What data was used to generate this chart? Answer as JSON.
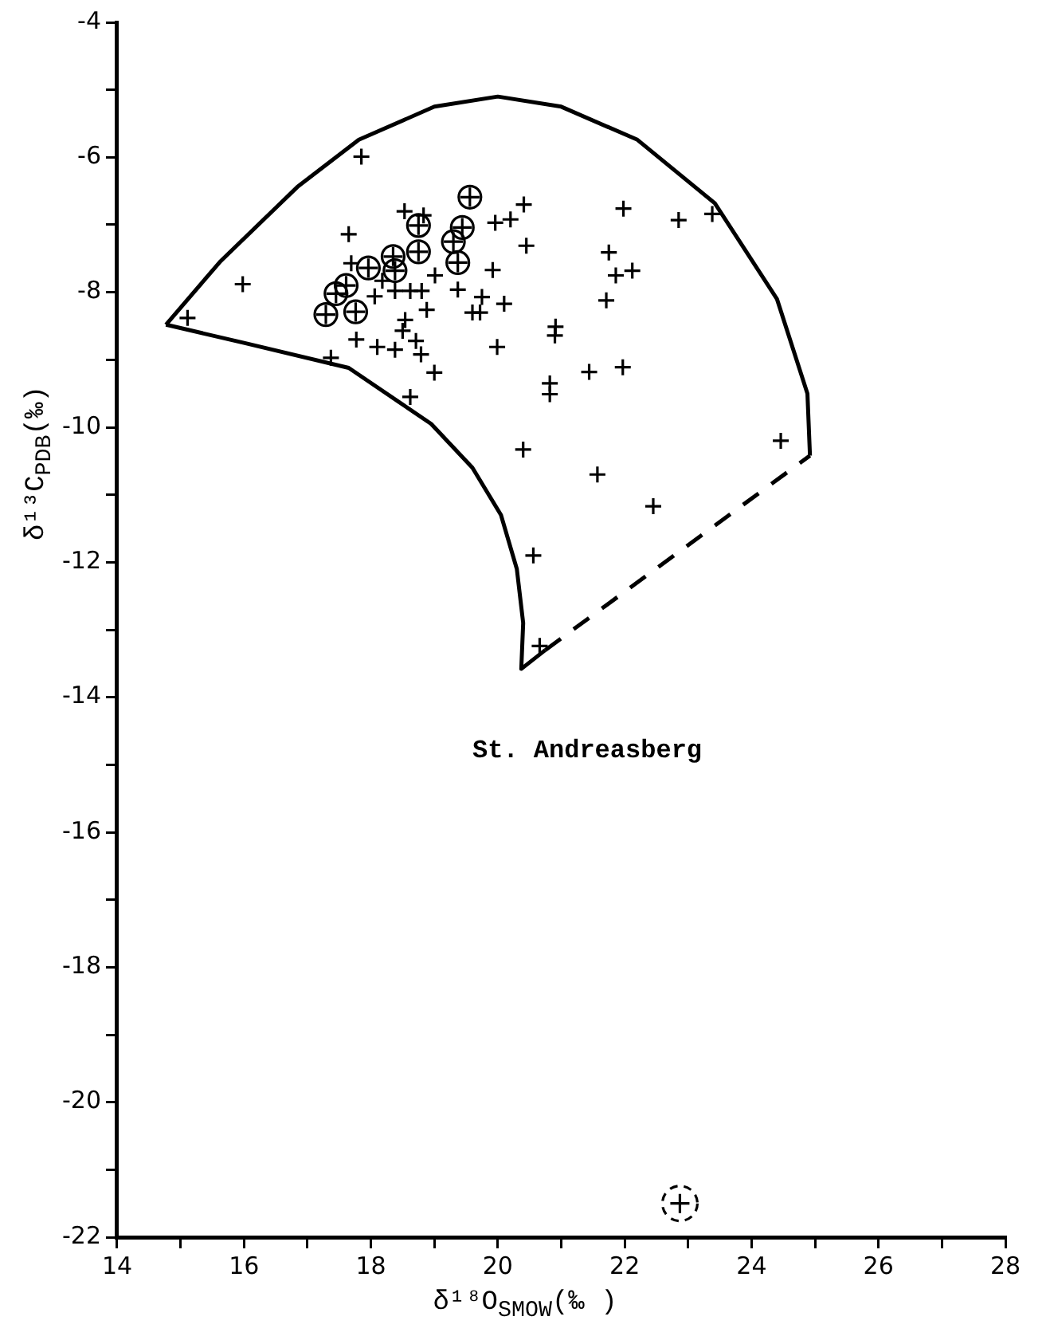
{
  "chart_data": {
    "type": "scatter",
    "xlabel": "δ¹⁸O$_{SMOW}$(‰ )",
    "ylabel": "δ¹³C$_{PDB}$(‰)",
    "xlim": [
      14,
      28
    ],
    "ylim": [
      -22,
      -4
    ],
    "xticks": [
      14,
      {
        "value": 15,
        "label": null
      },
      16,
      {
        "value": 17,
        "label": null
      },
      18,
      {
        "value": 19,
        "label": null
      },
      20,
      {
        "value": 21,
        "label": null
      },
      22,
      {
        "value": 23,
        "label": null
      },
      24,
      {
        "value": 25,
        "label": null
      },
      26,
      {
        "value": 27,
        "label": null
      },
      28
    ],
    "yticks": [
      -22,
      {
        "value": -21,
        "label": null
      },
      -20,
      {
        "value": -19,
        "label": null
      },
      -18,
      {
        "value": -17,
        "label": null
      },
      -16,
      {
        "value": -15,
        "label": null
      },
      -14,
      {
        "value": -13,
        "label": null
      },
      -12,
      {
        "value": -11,
        "label": null
      },
      -10,
      {
        "value": -9,
        "label": null
      },
      -8,
      {
        "value": -7,
        "label": null
      },
      -6,
      {
        "value": -5,
        "label": null
      },
      -4
    ],
    "annotations": [
      "St. Andreasberg"
    ],
    "series": [
      {
        "type": "line",
        "color": "#000000",
        "x": [
          14.77,
          15.62,
          16.84,
          17.81,
          19,
          20,
          21,
          22.2,
          23.42,
          24.4,
          24.88,
          24.92
        ],
        "values": [
          -8.48,
          -7.55,
          -6.44,
          -5.74,
          -5.25,
          -5.1,
          -5.25,
          -5.74,
          -6.68,
          -8.1,
          -9.5,
          -10.42
        ]
      },
      {
        "type": "line",
        "color": "#000000",
        "x": [
          14.77,
          16,
          17.65,
          18.95,
          19.6,
          20.05,
          20.3,
          20.4,
          20.37,
          20.75
        ],
        "values": [
          -8.48,
          -8.75,
          -9.12,
          -9.95,
          -10.6,
          -11.3,
          -12.1,
          -12.9,
          -13.58,
          -13.3
        ]
      },
      {
        "type": "line",
        "line_style": "dashed",
        "color": "#000000",
        "x": [
          20.75,
          24.92
        ],
        "values": [
          -13.3,
          -10.42
        ]
      },
      {
        "type": "scatter",
        "marker": "cross",
        "color": "#000000",
        "x": [
          17.85,
          15.11,
          15.98,
          17.65,
          17.37,
          18.53,
          18.83,
          19.96,
          20.2,
          20.41,
          20.45,
          19.92,
          19.01,
          19.37,
          19.75,
          20.1,
          19.6,
          19.72,
          18.88,
          18.38,
          18.62,
          18.8,
          18.06,
          18.18,
          17.69,
          18.54,
          18.5,
          18.71,
          18.79,
          18.1,
          18.38,
          19,
          18.62,
          17.77,
          19.99,
          20.9,
          20.82,
          20.4,
          21.98,
          22.85,
          23.38,
          21.75,
          21.86,
          22.12,
          21.71,
          20.91,
          20.82,
          21.44,
          21.97,
          21.57,
          22.45,
          24.46,
          20.56,
          20.66
        ],
        "values": [
          -5.99,
          -8.38,
          -7.88,
          -7.14,
          -8.97,
          -6.8,
          -6.86,
          -6.97,
          -6.92,
          -6.7,
          -7.31,
          -7.67,
          -7.75,
          -7.96,
          -8.07,
          -8.17,
          -8.3,
          -8.3,
          -8.26,
          -7.98,
          -7.98,
          -7.98,
          -8.06,
          -7.83,
          -7.57,
          -8.41,
          -8.57,
          -8.72,
          -8.92,
          -8.81,
          -8.85,
          -9.19,
          -9.55,
          -8.7,
          -8.81,
          -8.64,
          -9.51,
          -10.33,
          -6.76,
          -6.93,
          -6.84,
          -7.41,
          -7.75,
          -7.68,
          -8.12,
          -8.51,
          -9.35,
          -9.18,
          -9.11,
          -10.7,
          -11.17,
          -10.2,
          -11.9,
          -13.24
        ]
      },
      {
        "type": "scatter",
        "marker": "circle",
        "color": "#000000",
        "x": [
          19.56,
          19.44,
          19.3,
          19.37,
          18.75,
          18.75,
          18.35,
          18.38,
          17.96,
          17.61,
          17.45,
          17.29,
          17.76
        ],
        "values": [
          -6.59,
          -7.04,
          -7.25,
          -7.56,
          -7.01,
          -7.4,
          -7.47,
          -7.68,
          -7.64,
          -7.9,
          -8.02,
          -8.33,
          -8.29
        ]
      },
      {
        "type": "scatter",
        "marker": "circle",
        "line_style": "dashed",
        "color": "#000000",
        "x": [
          22.87
        ],
        "values": [
          -21.5
        ]
      }
    ]
  }
}
